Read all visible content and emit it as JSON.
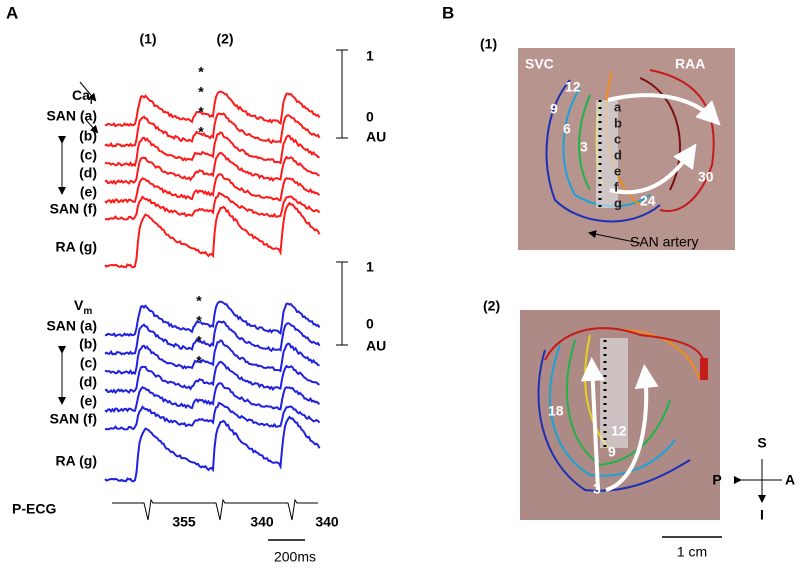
{
  "panel_a": {
    "label": "A",
    "beat_labels": [
      "(1)",
      "(2)"
    ],
    "ca_label": "Ca",
    "ca_sub": "i",
    "vm_label": "V",
    "vm_sub": "m",
    "ca_rows": [
      "SAN (a)",
      "(b)",
      "(c)",
      "(d)",
      "(e)",
      "SAN (f)",
      "RA (g)"
    ],
    "vm_rows": [
      "SAN (a)",
      "(b)",
      "(c)",
      "(d)",
      "(e)",
      "SAN (f)",
      "RA (g)"
    ],
    "ca_asterisks": [
      "*",
      "*",
      "*",
      "*"
    ],
    "vm_asterisks": [
      "*",
      "*",
      "*",
      "*"
    ],
    "ca_scale": {
      "top": "1",
      "zero": "0",
      "unit": "AU"
    },
    "vm_scale": {
      "top": "1",
      "zero": "0",
      "unit": "AU"
    },
    "ecg_label": "P-ECG",
    "intervals": [
      "355",
      "340",
      "340"
    ],
    "time_scale": "200ms"
  },
  "panel_b": {
    "label": "B",
    "map1": {
      "label": "(1)",
      "svc": "SVC",
      "raa": "RAA",
      "isochrones": [
        "12",
        "9",
        "6",
        "3",
        "30",
        "24"
      ],
      "letters": [
        "a",
        "b",
        "c",
        "d",
        "e",
        "f",
        "g"
      ],
      "artery": "SAN artery"
    },
    "map2": {
      "label": "(2)",
      "isochrones": [
        "18",
        "12",
        "9",
        "3"
      ]
    },
    "orientation": {
      "superior": "S",
      "anterior": "A",
      "inferior": "I",
      "posterior": "P"
    },
    "scale": "1 cm"
  }
}
